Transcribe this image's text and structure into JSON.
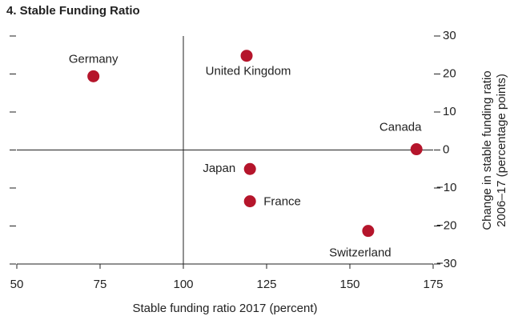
{
  "chart_data": {
    "type": "scatter",
    "title": "4. Stable Funding Ratio",
    "xlabel": "Stable funding ratio 2017 (percent)",
    "ylabel": [
      "Change in stable funding ratio",
      "2006–17 (percentage points)"
    ],
    "categories": [
      "Germany",
      "United Kingdom",
      "Canada",
      "Japan",
      "France",
      "Switzerland"
    ],
    "x": [
      73,
      119,
      170,
      120,
      120,
      155.5
    ],
    "values": [
      19.4,
      24.8,
      0.2,
      -5,
      -13.5,
      -21.3
    ],
    "color": "#b5152b",
    "xlim": [
      50,
      175
    ],
    "xticks": [
      50,
      75,
      100,
      125,
      150,
      175
    ],
    "ylim": [
      -30,
      30
    ],
    "yticks": [
      {
        "value": -30,
        "label": "−30"
      },
      {
        "value": -20,
        "label": "−20"
      },
      {
        "value": -10,
        "label": "−10"
      },
      0,
      10,
      20,
      30
    ]
  }
}
